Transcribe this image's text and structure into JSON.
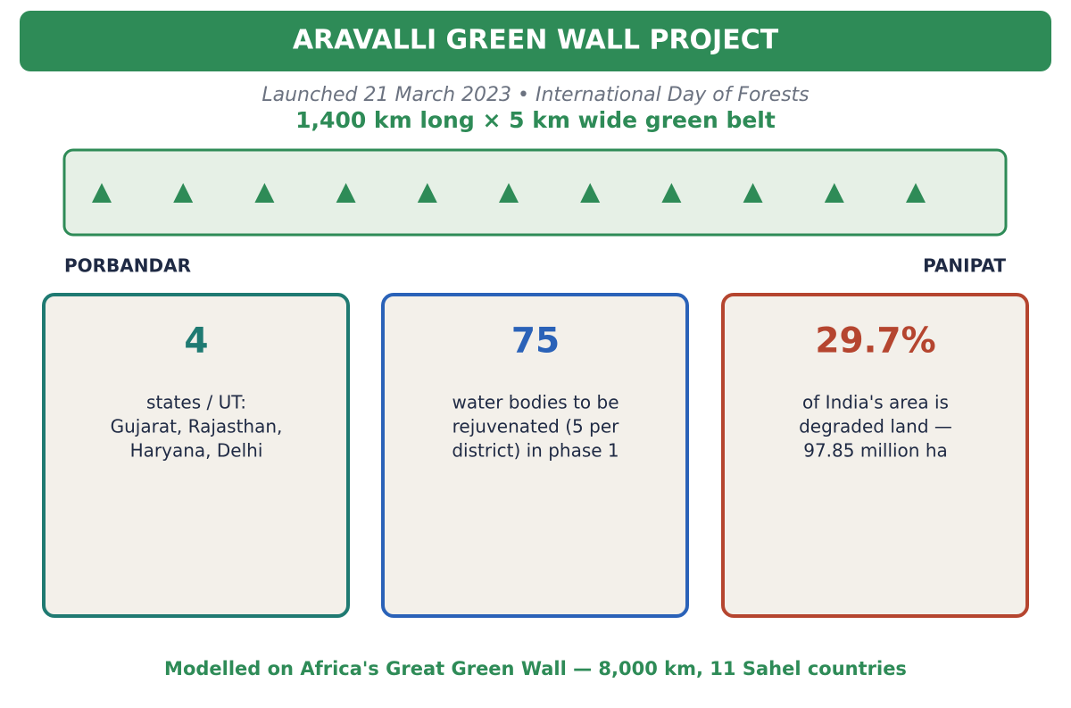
{
  "header": {
    "title": "ARAVALLI GREEN WALL PROJECT"
  },
  "subtitle": "Launched 21 March 2023  •  International Day of Forests",
  "tagline": "1,400 km long  ×  5 km wide green belt",
  "belt": {
    "start": "PORBANDAR",
    "end": "PANIPAT"
  },
  "cards": [
    {
      "value": "4",
      "lines": [
        "states / UT:",
        "Gujarat, Rajasthan,",
        "Haryana, Delhi"
      ]
    },
    {
      "value": "75",
      "lines": [
        "water bodies to be",
        "rejuvenated (5 per",
        "district) in phase 1"
      ]
    },
    {
      "value": "29.7%",
      "lines": [
        "of India's area is",
        "degraded land —",
        "97.85 million ha"
      ]
    }
  ],
  "footer": "Modelled on Africa's Great Green Wall — 8,000 km, 11 Sahel countries"
}
